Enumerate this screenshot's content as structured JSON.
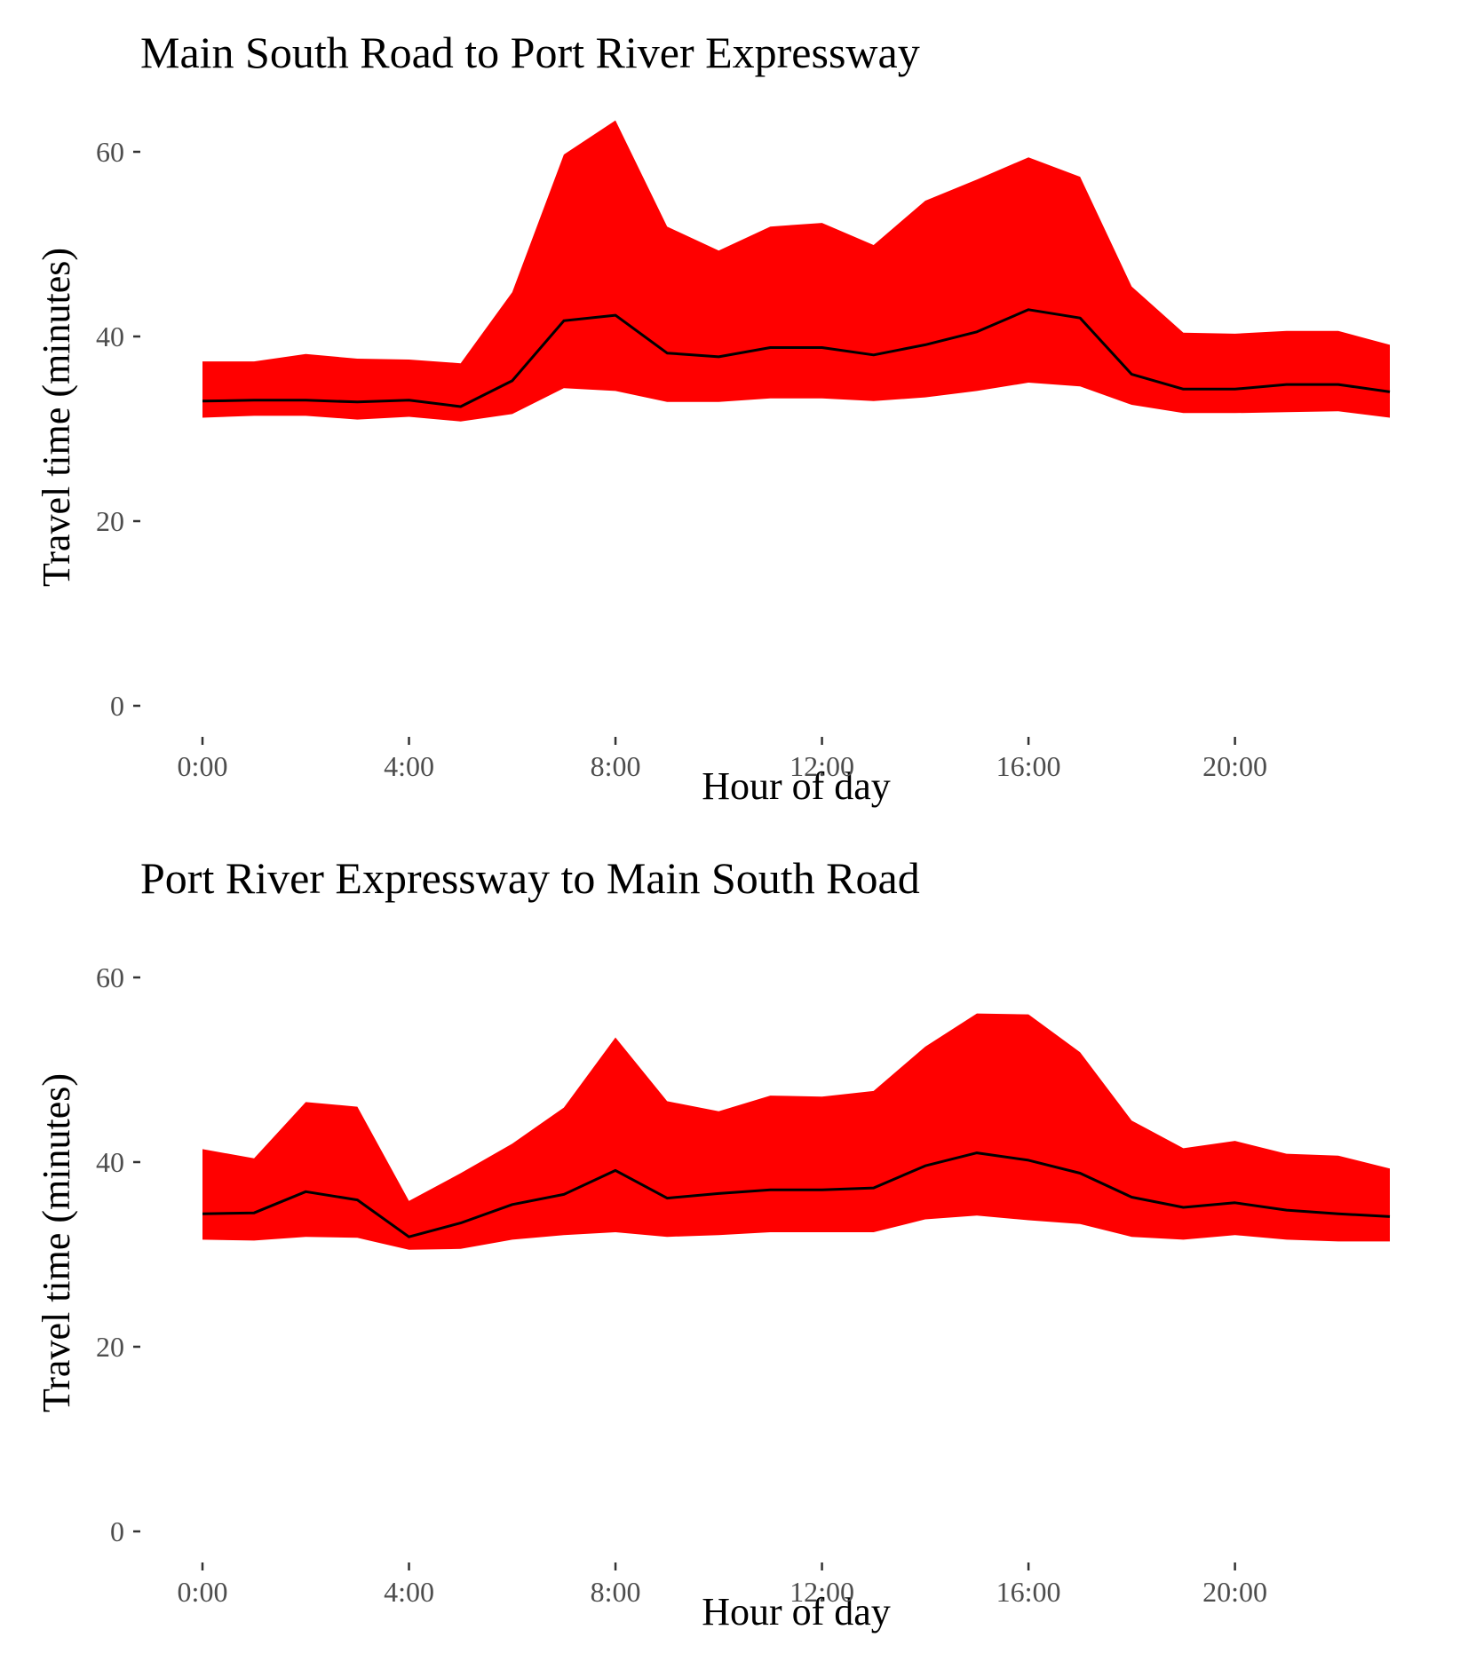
{
  "chart_data": [
    {
      "type": "area",
      "title": "Main South Road to Port River Expressway",
      "xlabel": "Hour of day",
      "ylabel": "Travel time (minutes)",
      "xlim": [
        0,
        23
      ],
      "ylim": [
        0,
        65
      ],
      "xticks": [
        0,
        4,
        8,
        12,
        16,
        20
      ],
      "xtick_labels": [
        "0:00",
        "4:00",
        "8:00",
        "12:00",
        "16:00",
        "20:00"
      ],
      "yticks": [
        0,
        20,
        40,
        60
      ],
      "ytick_labels": [
        "0",
        "20",
        "40",
        "60"
      ],
      "grid": false,
      "band_color": "#ff0000",
      "line_color": "#000000",
      "x": [
        0,
        1,
        2,
        3,
        4,
        5,
        6,
        7,
        8,
        9,
        10,
        11,
        12,
        13,
        14,
        15,
        16,
        17,
        18,
        19,
        20,
        21,
        22,
        23
      ],
      "series": [
        {
          "role": "lower",
          "values": [
            31.2,
            31.4,
            31.4,
            31.0,
            31.3,
            30.8,
            31.6,
            34.4,
            34.1,
            32.9,
            32.9,
            33.3,
            33.3,
            33.0,
            33.4,
            34.1,
            35.0,
            34.6,
            32.6,
            31.7,
            31.7,
            31.8,
            31.9,
            31.2
          ]
        },
        {
          "role": "median",
          "values": [
            33.0,
            33.1,
            33.1,
            32.9,
            33.1,
            32.4,
            35.2,
            41.7,
            42.3,
            38.2,
            37.8,
            38.8,
            38.8,
            38.0,
            39.1,
            40.5,
            42.9,
            42.0,
            35.9,
            34.3,
            34.3,
            34.8,
            34.8,
            34.0
          ]
        },
        {
          "role": "upper",
          "values": [
            37.3,
            37.3,
            38.1,
            37.6,
            37.5,
            37.1,
            44.8,
            59.7,
            63.4,
            51.9,
            49.3,
            51.9,
            52.3,
            49.9,
            54.7,
            57.0,
            59.4,
            57.3,
            45.4,
            40.4,
            40.3,
            40.6,
            40.6,
            39.1
          ]
        }
      ]
    },
    {
      "type": "area",
      "title": "Port River Expressway to Main South Road",
      "xlabel": "Hour of day",
      "ylabel": "Travel time (minutes)",
      "xlim": [
        0,
        23
      ],
      "ylim": [
        0,
        65
      ],
      "xticks": [
        0,
        4,
        8,
        12,
        16,
        20
      ],
      "xtick_labels": [
        "0:00",
        "4:00",
        "8:00",
        "12:00",
        "16:00",
        "20:00"
      ],
      "yticks": [
        0,
        20,
        40,
        60
      ],
      "ytick_labels": [
        "0",
        "20",
        "40",
        "60"
      ],
      "grid": false,
      "band_color": "#ff0000",
      "line_color": "#000000",
      "x": [
        0,
        1,
        2,
        3,
        4,
        5,
        6,
        7,
        8,
        9,
        10,
        11,
        12,
        13,
        14,
        15,
        16,
        17,
        18,
        19,
        20,
        21,
        22,
        23
      ],
      "series": [
        {
          "role": "lower",
          "values": [
            31.6,
            31.5,
            31.9,
            31.8,
            30.5,
            30.6,
            31.6,
            32.1,
            32.4,
            31.9,
            32.1,
            32.4,
            32.4,
            32.4,
            33.8,
            34.2,
            33.7,
            33.3,
            31.9,
            31.6,
            32.1,
            31.6,
            31.4,
            31.4
          ]
        },
        {
          "role": "median",
          "values": [
            34.4,
            34.5,
            36.8,
            35.9,
            31.9,
            33.4,
            35.4,
            36.5,
            39.1,
            36.1,
            36.6,
            37.0,
            37.0,
            37.2,
            39.6,
            41.0,
            40.2,
            38.8,
            36.2,
            35.1,
            35.6,
            34.8,
            34.4,
            34.1
          ]
        },
        {
          "role": "upper",
          "values": [
            41.4,
            40.4,
            46.5,
            46.0,
            35.8,
            38.8,
            42.0,
            45.9,
            53.5,
            46.6,
            45.5,
            47.2,
            47.1,
            47.7,
            52.5,
            56.1,
            56.0,
            51.9,
            44.5,
            41.5,
            42.3,
            40.9,
            40.7,
            39.3
          ]
        }
      ]
    }
  ]
}
